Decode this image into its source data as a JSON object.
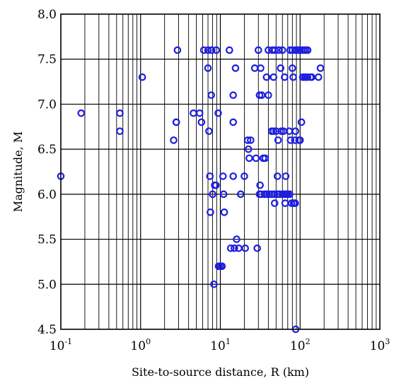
{
  "chart_data": {
    "type": "scatter",
    "xlabel": "Site-to-source distance, R (km)",
    "ylabel": "Magnitude, M",
    "x_scale": "log",
    "xlim": [
      0.1,
      1000
    ],
    "ylim": [
      4.5,
      8.0
    ],
    "x_ticks": [
      {
        "base": "10",
        "exp": "-1",
        "value": 0.1
      },
      {
        "base": "10",
        "exp": "0",
        "value": 1
      },
      {
        "base": "10",
        "exp": "1",
        "value": 10
      },
      {
        "base": "10",
        "exp": "2",
        "value": 100
      },
      {
        "base": "10",
        "exp": "3",
        "value": 1000
      }
    ],
    "y_ticks": [
      "4.5",
      "5.0",
      "5.5",
      "6.0",
      "6.5",
      "7.0",
      "7.5",
      "8.0"
    ],
    "grid": true,
    "marker_color": "#1f1fe0",
    "points": [
      {
        "x": 0.1,
        "y": 6.2
      },
      {
        "x": 0.18,
        "y": 6.9
      },
      {
        "x": 0.55,
        "y": 6.9
      },
      {
        "x": 0.55,
        "y": 6.7
      },
      {
        "x": 1.05,
        "y": 7.3
      },
      {
        "x": 2.6,
        "y": 6.6
      },
      {
        "x": 2.8,
        "y": 6.8
      },
      {
        "x": 2.8,
        "y": 6.8
      },
      {
        "x": 2.9,
        "y": 7.6
      },
      {
        "x": 4.6,
        "y": 6.9
      },
      {
        "x": 5.5,
        "y": 6.9
      },
      {
        "x": 5.8,
        "y": 6.8
      },
      {
        "x": 6.2,
        "y": 7.6
      },
      {
        "x": 7.0,
        "y": 7.4
      },
      {
        "x": 7.0,
        "y": 7.6
      },
      {
        "x": 7.2,
        "y": 6.7
      },
      {
        "x": 7.4,
        "y": 6.2
      },
      {
        "x": 7.5,
        "y": 5.8
      },
      {
        "x": 7.7,
        "y": 7.1
      },
      {
        "x": 7.8,
        "y": 7.6
      },
      {
        "x": 8.0,
        "y": 6.0
      },
      {
        "x": 8.3,
        "y": 5.0
      },
      {
        "x": 8.5,
        "y": 6.1
      },
      {
        "x": 8.8,
        "y": 6.1
      },
      {
        "x": 8.9,
        "y": 7.6
      },
      {
        "x": 9.4,
        "y": 6.9
      },
      {
        "x": 9.5,
        "y": 5.2
      },
      {
        "x": 10.0,
        "y": 5.2
      },
      {
        "x": 10.5,
        "y": 5.2
      },
      {
        "x": 10.8,
        "y": 6.2
      },
      {
        "x": 11.0,
        "y": 6.0
      },
      {
        "x": 11.2,
        "y": 5.8
      },
      {
        "x": 13.0,
        "y": 7.6
      },
      {
        "x": 13.5,
        "y": 5.4
      },
      {
        "x": 14.5,
        "y": 6.2
      },
      {
        "x": 14.5,
        "y": 6.8
      },
      {
        "x": 14.5,
        "y": 7.1
      },
      {
        "x": 15.0,
        "y": 5.4
      },
      {
        "x": 15.5,
        "y": 7.4
      },
      {
        "x": 16.0,
        "y": 5.5
      },
      {
        "x": 17.0,
        "y": 5.4
      },
      {
        "x": 18.0,
        "y": 6.0
      },
      {
        "x": 20.0,
        "y": 6.2
      },
      {
        "x": 20.5,
        "y": 5.4
      },
      {
        "x": 22.0,
        "y": 6.6
      },
      {
        "x": 22.5,
        "y": 6.5
      },
      {
        "x": 23.0,
        "y": 6.4
      },
      {
        "x": 24.0,
        "y": 6.6
      },
      {
        "x": 27.0,
        "y": 7.4
      },
      {
        "x": 28.0,
        "y": 6.4
      },
      {
        "x": 29.0,
        "y": 5.4
      },
      {
        "x": 30.0,
        "y": 7.6
      },
      {
        "x": 31.0,
        "y": 6.0
      },
      {
        "x": 31.5,
        "y": 6.1
      },
      {
        "x": 31.0,
        "y": 7.1
      },
      {
        "x": 32.0,
        "y": 7.4
      },
      {
        "x": 32.5,
        "y": 6.0
      },
      {
        "x": 33.0,
        "y": 7.1
      },
      {
        "x": 34.5,
        "y": 6.4
      },
      {
        "x": 36.0,
        "y": 6.0
      },
      {
        "x": 36.5,
        "y": 6.4
      },
      {
        "x": 38.0,
        "y": 7.3
      },
      {
        "x": 38.5,
        "y": 6.0
      },
      {
        "x": 40.0,
        "y": 7.6
      },
      {
        "x": 40.0,
        "y": 7.1
      },
      {
        "x": 41.0,
        "y": 6.0
      },
      {
        "x": 44.0,
        "y": 6.7
      },
      {
        "x": 44.0,
        "y": 6.0
      },
      {
        "x": 45.0,
        "y": 7.6
      },
      {
        "x": 46.5,
        "y": 7.3
      },
      {
        "x": 46.5,
        "y": 6.7
      },
      {
        "x": 48.0,
        "y": 5.9
      },
      {
        "x": 48.0,
        "y": 6.0
      },
      {
        "x": 48.5,
        "y": 7.6
      },
      {
        "x": 50.0,
        "y": 6.7
      },
      {
        "x": 52.0,
        "y": 6.2
      },
      {
        "x": 52.0,
        "y": 6.0
      },
      {
        "x": 53.0,
        "y": 6.6
      },
      {
        "x": 54.0,
        "y": 7.6
      },
      {
        "x": 55.0,
        "y": 6.0
      },
      {
        "x": 57.0,
        "y": 7.4
      },
      {
        "x": 58.0,
        "y": 6.7
      },
      {
        "x": 60.0,
        "y": 6.0
      },
      {
        "x": 60.0,
        "y": 7.6
      },
      {
        "x": 62.0,
        "y": 6.7
      },
      {
        "x": 63.0,
        "y": 6.0
      },
      {
        "x": 64.0,
        "y": 7.3
      },
      {
        "x": 65.0,
        "y": 5.9
      },
      {
        "x": 66.0,
        "y": 6.2
      },
      {
        "x": 66.5,
        "y": 6.0
      },
      {
        "x": 68.0,
        "y": 6.0
      },
      {
        "x": 70.0,
        "y": 6.0
      },
      {
        "x": 73.0,
        "y": 6.7
      },
      {
        "x": 74.0,
        "y": 6.0
      },
      {
        "x": 75.0,
        "y": 7.6
      },
      {
        "x": 76.0,
        "y": 6.6
      },
      {
        "x": 78.0,
        "y": 5.9
      },
      {
        "x": 80.0,
        "y": 7.4
      },
      {
        "x": 80.0,
        "y": 7.6
      },
      {
        "x": 82.0,
        "y": 7.3
      },
      {
        "x": 83.0,
        "y": 5.9
      },
      {
        "x": 84.0,
        "y": 5.9
      },
      {
        "x": 86.0,
        "y": 6.6
      },
      {
        "x": 86.5,
        "y": 7.6
      },
      {
        "x": 87.0,
        "y": 5.9
      },
      {
        "x": 87.5,
        "y": 6.7
      },
      {
        "x": 88.0,
        "y": 4.5
      },
      {
        "x": 90.0,
        "y": 7.6
      },
      {
        "x": 95.0,
        "y": 7.6
      },
      {
        "x": 97.0,
        "y": 6.6
      },
      {
        "x": 99.0,
        "y": 7.6
      },
      {
        "x": 100.0,
        "y": 6.6
      },
      {
        "x": 104.0,
        "y": 6.8
      },
      {
        "x": 106.0,
        "y": 7.6
      },
      {
        "x": 108.0,
        "y": 7.3
      },
      {
        "x": 110.0,
        "y": 7.3
      },
      {
        "x": 112.0,
        "y": 7.6
      },
      {
        "x": 116.0,
        "y": 7.3
      },
      {
        "x": 118.0,
        "y": 7.6
      },
      {
        "x": 120.0,
        "y": 7.3
      },
      {
        "x": 124.0,
        "y": 7.3
      },
      {
        "x": 124.5,
        "y": 7.6
      },
      {
        "x": 135.0,
        "y": 7.3
      },
      {
        "x": 140.0,
        "y": 7.3
      },
      {
        "x": 170.0,
        "y": 7.3
      },
      {
        "x": 180.0,
        "y": 7.4
      }
    ]
  }
}
